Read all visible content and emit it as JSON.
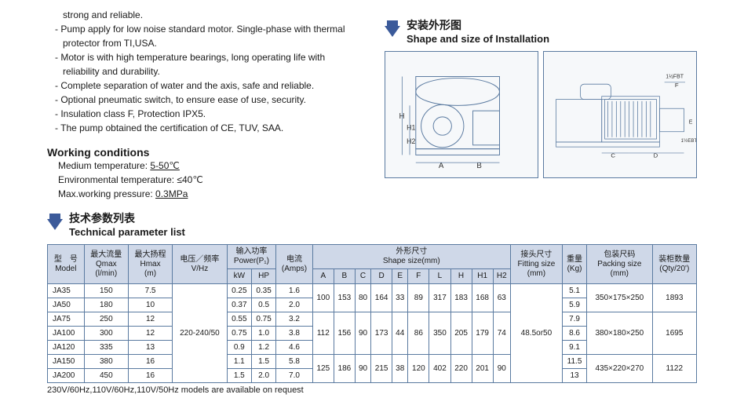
{
  "bullets": [
    "strong and reliable.",
    "Pump apply for low noise standard motor. Single-phase with thermal protector from TI,USA.",
    "Motor is with high temperature  bearings, long  operating  life with reliability and durability.",
    "Complete separation of water and the axis, safe and reliable.",
    "Optional pneumatic switch, to ensure ease of use, security.",
    "Insulation class F, Protection IPX5.",
    "The  pump  obtained  the certification of CE, TUV, SAA."
  ],
  "install_cn": "安装外形图",
  "install_en": "Shape and size of Installation",
  "wc_title": "Working conditions",
  "wc_lines": [
    {
      "label": "Medium temperature: ",
      "val": "5-50℃",
      "u": true
    },
    {
      "label": "Environmental temperature: ",
      "val": "≤40℃",
      "u": false
    },
    {
      "label": "Max.working pressure: ",
      "val": "0.3MPa",
      "u": true
    }
  ],
  "dim_labels": [
    "H",
    "H1",
    "H2",
    "A",
    "B",
    "1½FBT",
    "F",
    "C",
    "D",
    "E",
    "1½EBT"
  ],
  "tpl_cn": "技术参数列表",
  "tpl_en": "Technical parameter list",
  "headers": {
    "model": {
      "cn": "型　号",
      "en": "Model"
    },
    "qmax": {
      "cn": "最大流量",
      "en": "Qmax",
      "unit": "(l/min)"
    },
    "hmax": {
      "cn": "最大扬程",
      "en": "Hmax",
      "unit": "(m)"
    },
    "vhz": {
      "cn": "电压／频率",
      "en": "V/Hz"
    },
    "power": {
      "cn": "输入功率",
      "en": "Power(P₁)"
    },
    "kw": "kW",
    "hp": "HP",
    "amps": {
      "cn": "电流",
      "en": "(Amps)"
    },
    "shape": {
      "cn": "外形尺寸",
      "en": "Shape size(mm)"
    },
    "fitting": {
      "cn": "接头尺寸",
      "en": "Fitting size",
      "unit": "(mm)"
    },
    "weight": {
      "cn": "重量",
      "en": "(Kg)"
    },
    "packing": {
      "cn": "包装尺码",
      "en": "Packing size",
      "unit": "(mm)"
    },
    "qty": {
      "cn": "装柜数量",
      "en": "(Qty/20')"
    },
    "dims": [
      "A",
      "B",
      "C",
      "D",
      "E",
      "F",
      "L",
      "H",
      "H1",
      "H2"
    ]
  },
  "vhz_val": "220-240/50",
  "fitting_val": "48.5or50",
  "rows": [
    {
      "model": "JA35",
      "qmax": "150",
      "hmax": "7.5",
      "kw": "0.25",
      "hp": "0.35",
      "amps": "1.6",
      "wt": "5.1"
    },
    {
      "model": "JA50",
      "qmax": "180",
      "hmax": "10",
      "kw": "0.37",
      "hp": "0.5",
      "amps": "2.0",
      "wt": "5.9"
    },
    {
      "model": "JA75",
      "qmax": "250",
      "hmax": "12",
      "kw": "0.55",
      "hp": "0.75",
      "amps": "3.2",
      "wt": "7.9"
    },
    {
      "model": "JA100",
      "qmax": "300",
      "hmax": "12",
      "kw": "0.75",
      "hp": "1.0",
      "amps": "3.8",
      "wt": "8.6"
    },
    {
      "model": "JA120",
      "qmax": "335",
      "hmax": "13",
      "kw": "0.9",
      "hp": "1.2",
      "amps": "4.6",
      "wt": "9.1"
    },
    {
      "model": "JA150",
      "qmax": "380",
      "hmax": "16",
      "kw": "1.1",
      "hp": "1.5",
      "amps": "5.8",
      "wt": "11.5"
    },
    {
      "model": "JA200",
      "qmax": "450",
      "hmax": "16",
      "kw": "1.5",
      "hp": "2.0",
      "amps": "7.0",
      "wt": "13"
    }
  ],
  "dimgroups": [
    {
      "span": 2,
      "A": "100",
      "B": "153",
      "C": "80",
      "D": "164",
      "E": "33",
      "F": "89",
      "L": "317",
      "H": "183",
      "H1": "168",
      "H2": "63",
      "pack": "350×175×250",
      "qty": "1893"
    },
    {
      "span": 3,
      "A": "112",
      "B": "156",
      "C": "90",
      "D": "173",
      "E": "44",
      "F": "86",
      "L": "350",
      "H": "205",
      "H1": "179",
      "H2": "74",
      "pack": "380×180×250",
      "qty": "1695"
    },
    {
      "span": 2,
      "A": "125",
      "B": "186",
      "C": "90",
      "D": "215",
      "E": "38",
      "F": "120",
      "L": "402",
      "H": "220",
      "H1": "201",
      "H2": "90",
      "pack": "435×220×270",
      "qty": "1122"
    }
  ],
  "footnote": "230V/60Hz,110V/60Hz,110V/50Hz models are available on request",
  "colors": {
    "header_bg": "#cfd8e8",
    "border": "#5a7aa0",
    "arrow": "#3b5a9a"
  }
}
